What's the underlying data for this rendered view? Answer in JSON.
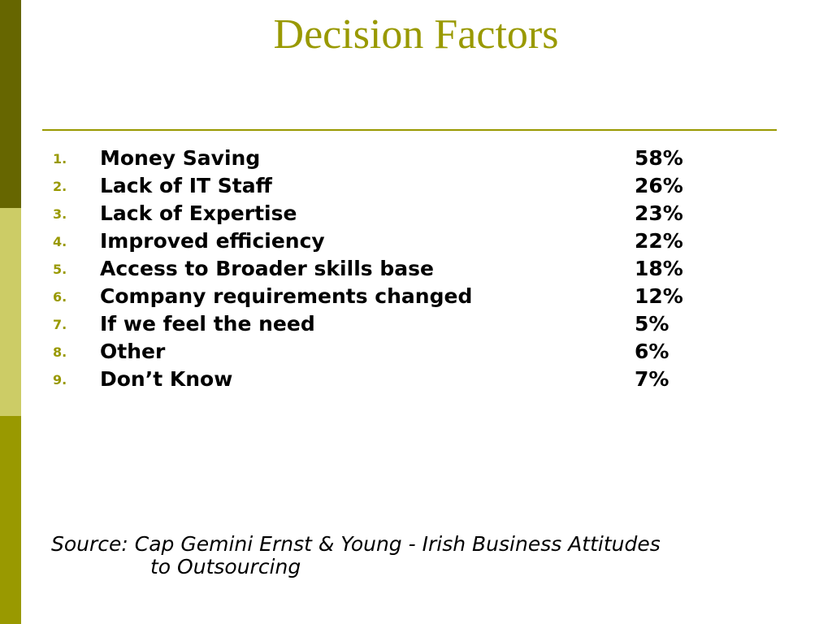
{
  "slide": {
    "title": "Decision Factors",
    "colors": {
      "accent": "#999900",
      "bar_top": "#666600",
      "bar_mid": "#cccc66",
      "bar_bottom": "#999900"
    },
    "items": [
      {
        "number": "1.",
        "label": "Money Saving",
        "percent": "58%"
      },
      {
        "number": "2.",
        "label": "Lack of IT Staff",
        "percent": "26%"
      },
      {
        "number": "3.",
        "label": "Lack of Expertise",
        "percent": "23%"
      },
      {
        "number": "4.",
        "label": "Improved efficiency",
        "percent": "22%"
      },
      {
        "number": "5.",
        "label": "Access to Broader skills base",
        "percent": "18%"
      },
      {
        "number": "6.",
        "label": "Company requirements changed",
        "percent": "12%"
      },
      {
        "number": "7.",
        "label": "If we feel the need",
        "percent": "5%"
      },
      {
        "number": "8.",
        "label": "Other",
        "percent": "6%"
      },
      {
        "number": "9.",
        "label": "Don’t Know",
        "percent": "7%"
      }
    ],
    "source": {
      "line1": "Source: Cap Gemini Ernst & Young - Irish Business Attitudes",
      "line2": "to Outsourcing"
    }
  }
}
